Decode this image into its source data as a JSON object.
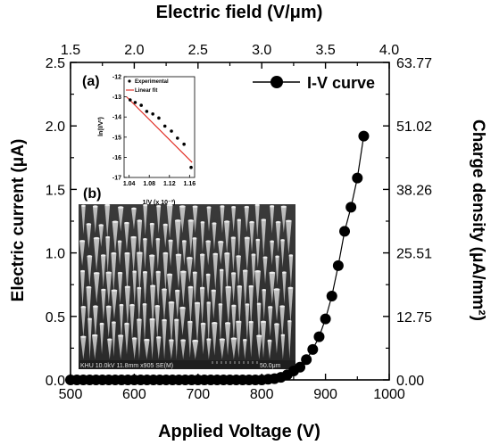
{
  "chart_data": [
    {
      "type": "scatter",
      "title": "",
      "xlabel": "Applied Voltage (V)",
      "ylabel": "Electric current (μA)",
      "top_xlabel": "Electric field (V/μm)",
      "right_ylabel": "Charge density (μA/mm²)",
      "xlim": [
        500,
        1000
      ],
      "ylim": [
        0,
        2.5
      ],
      "x_ticks": [
        "500",
        "600",
        "700",
        "800",
        "900",
        "1000"
      ],
      "y_ticks": [
        "0.0",
        "0.5",
        "1.0",
        "1.5",
        "2.0",
        "2.5"
      ],
      "top_lim": [
        1.5,
        4.0
      ],
      "top_ticks": [
        "1.5",
        "2.0",
        "2.5",
        "3.0",
        "3.5",
        "4.0"
      ],
      "right_lim": [
        0,
        63.77
      ],
      "right_ticks": [
        "0.00",
        "12.75",
        "25.51",
        "38.26",
        "51.02",
        "63.77"
      ],
      "legend": {
        "position": "top-right",
        "entries": [
          "I-V curve"
        ]
      },
      "series": [
        {
          "name": "I-V curve",
          "color": "#000000",
          "marker": "filled-circle",
          "x": [
            500,
            510,
            520,
            530,
            540,
            550,
            560,
            570,
            580,
            590,
            600,
            610,
            620,
            630,
            640,
            650,
            660,
            670,
            680,
            690,
            700,
            710,
            720,
            730,
            740,
            750,
            760,
            770,
            780,
            790,
            800,
            810,
            820,
            830,
            840,
            850,
            860,
            870,
            880,
            890,
            900,
            910,
            920,
            930,
            940,
            950,
            960
          ],
          "y": [
            0,
            0,
            0,
            0,
            0,
            0,
            0,
            0,
            0,
            0,
            0,
            0,
            0,
            0,
            0,
            0,
            0,
            0,
            0,
            0,
            0,
            0,
            0,
            0,
            0,
            0,
            0,
            0,
            0,
            0,
            0,
            0.005,
            0.01,
            0.02,
            0.04,
            0.07,
            0.1,
            0.16,
            0.24,
            0.34,
            0.48,
            0.66,
            0.9,
            1.17,
            1.36,
            1.59,
            1.92
          ]
        }
      ]
    },
    {
      "type": "scatter",
      "panel_label": "(a)",
      "xlabel": "1/V (x 10⁻³)",
      "ylabel": "ln(I/V²)",
      "xlim": [
        1.03,
        1.17
      ],
      "ylim": [
        -17,
        -12
      ],
      "x_ticks": [
        "1.04",
        "1.08",
        "1.12",
        "1.16"
      ],
      "y_ticks": [
        "-12",
        "-13",
        "-14",
        "-15",
        "-16",
        "-17"
      ],
      "legend": {
        "position": "top-left",
        "entries": [
          "Experimental",
          "Linear fit"
        ]
      },
      "series": [
        {
          "name": "Experimental",
          "color": "#000000",
          "x": [
            1.042,
            1.052,
            1.064,
            1.075,
            1.087,
            1.099,
            1.111,
            1.124,
            1.136,
            1.149,
            1.163
          ],
          "y": [
            -13.15,
            -13.28,
            -13.42,
            -13.72,
            -13.85,
            -14.05,
            -14.45,
            -14.7,
            -15.05,
            -15.35,
            -16.5
          ]
        },
        {
          "name": "Linear fit",
          "color": "#e0251b",
          "x": [
            1.035,
            1.165
          ],
          "y": [
            -13.0,
            -16.25
          ]
        }
      ]
    }
  ],
  "sem_image": {
    "panel_label": "(b)",
    "caption_left": "KHU 10.0kV 11.8mm x905 SE(M)",
    "caption_right": "50.0μm"
  }
}
